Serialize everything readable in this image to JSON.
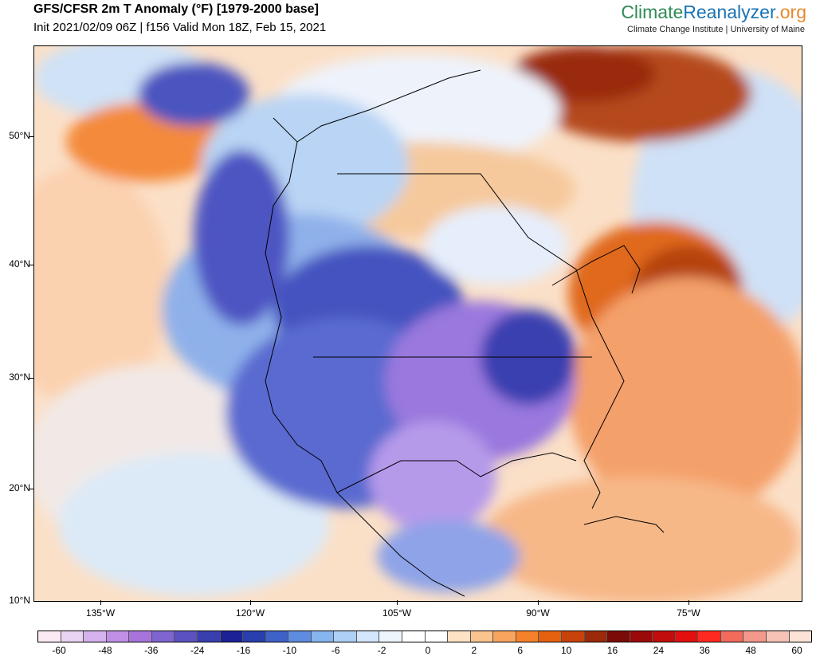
{
  "header": {
    "title": "GFS/CFSR 2m T Anomaly (°F) [1979-2000 base]",
    "subtitle": "Init 2021/02/09 06Z | f156 Valid Mon 18Z, Feb 15, 2021"
  },
  "brand": {
    "part1": "Climate",
    "part2": "Reanalyzer",
    "part3": ".org",
    "tagline": "Climate Change Institute | University of Maine",
    "colors": {
      "climate": "#2e8b57",
      "reanalyzer": "#1a73b5",
      "org": "#e8892b"
    }
  },
  "map": {
    "lat_labels": [
      "50°N",
      "40°N",
      "30°N",
      "20°N",
      "10°N"
    ],
    "lon_labels": [
      "135°W",
      "120°W",
      "105°W",
      "90°W",
      "75°W"
    ]
  },
  "colorbar": {
    "labels": [
      "-60",
      "-48",
      "-36",
      "-24",
      "-16",
      "-10",
      "-6",
      "-2",
      "0",
      "2",
      "6",
      "10",
      "16",
      "24",
      "36",
      "48",
      "60"
    ],
    "colors": [
      "#fbe9f3",
      "#ead4f3",
      "#d6b2ee",
      "#c190e6",
      "#a874dc",
      "#7f65cf",
      "#5a52c0",
      "#3a3fb0",
      "#1c2196",
      "#2a3fae",
      "#3f62c8",
      "#5e8ce0",
      "#86b5f0",
      "#aed0f7",
      "#d3e6fb",
      "#edf5fd",
      "#ffffff",
      "#ffffff",
      "#fde2c6",
      "#fbc48f",
      "#f9a45c",
      "#f5822a",
      "#e5610f",
      "#c8430b",
      "#9a2a0a",
      "#7a0b06",
      "#9b0a0a",
      "#c20d0d",
      "#e30f0f",
      "#ff2a1f",
      "#f36b5c",
      "#f4988b",
      "#f8c3b7",
      "#fbe3d8"
    ]
  }
}
